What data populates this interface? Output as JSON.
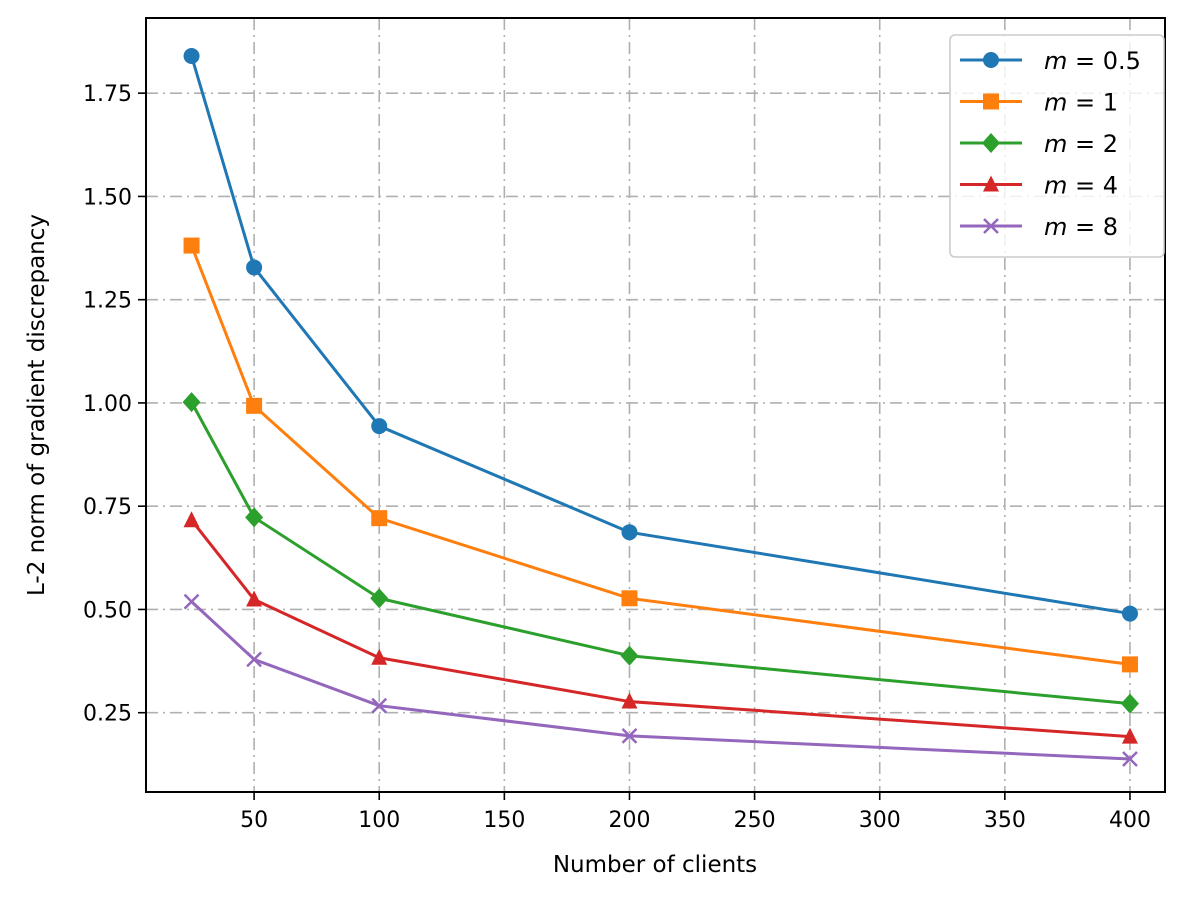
{
  "chart_data": {
    "type": "line",
    "title": "",
    "xlabel": "Number of clients",
    "ylabel": "L-2 norm of gradient discrepancy",
    "x": [
      25,
      50,
      100,
      200,
      400
    ],
    "xlim": [
      6.8,
      414
    ],
    "ylim": [
      0.058,
      1.932
    ],
    "xticks": [
      50,
      100,
      150,
      200,
      250,
      300,
      350,
      400
    ],
    "xtick_labels": [
      "50",
      "100",
      "150",
      "200",
      "250",
      "300",
      "350",
      "400"
    ],
    "yticks": [
      0.25,
      0.5,
      0.75,
      1.0,
      1.25,
      1.5,
      1.75
    ],
    "ytick_labels": [
      "0.25",
      "0.50",
      "0.75",
      "1.00",
      "1.25",
      "1.50",
      "1.75"
    ],
    "grid": true,
    "legend_position": "top-right",
    "series": [
      {
        "name": "m = 0.5",
        "color": "#1f77b4",
        "marker": "circle",
        "values": [
          1.84,
          1.328,
          0.944,
          0.687,
          0.49
        ]
      },
      {
        "name": "m = 1",
        "color": "#ff7f0e",
        "marker": "square",
        "values": [
          1.381,
          0.993,
          0.721,
          0.527,
          0.367
        ]
      },
      {
        "name": "m = 2",
        "color": "#2ca02c",
        "marker": "diamond",
        "values": [
          1.002,
          0.723,
          0.527,
          0.388,
          0.272
        ]
      },
      {
        "name": "m = 4",
        "color": "#d62728",
        "marker": "triangle",
        "values": [
          0.716,
          0.524,
          0.383,
          0.277,
          0.192
        ]
      },
      {
        "name": "m = 8",
        "color": "#9467bd",
        "marker": "x",
        "values": [
          0.519,
          0.379,
          0.267,
          0.194,
          0.138
        ]
      }
    ]
  }
}
